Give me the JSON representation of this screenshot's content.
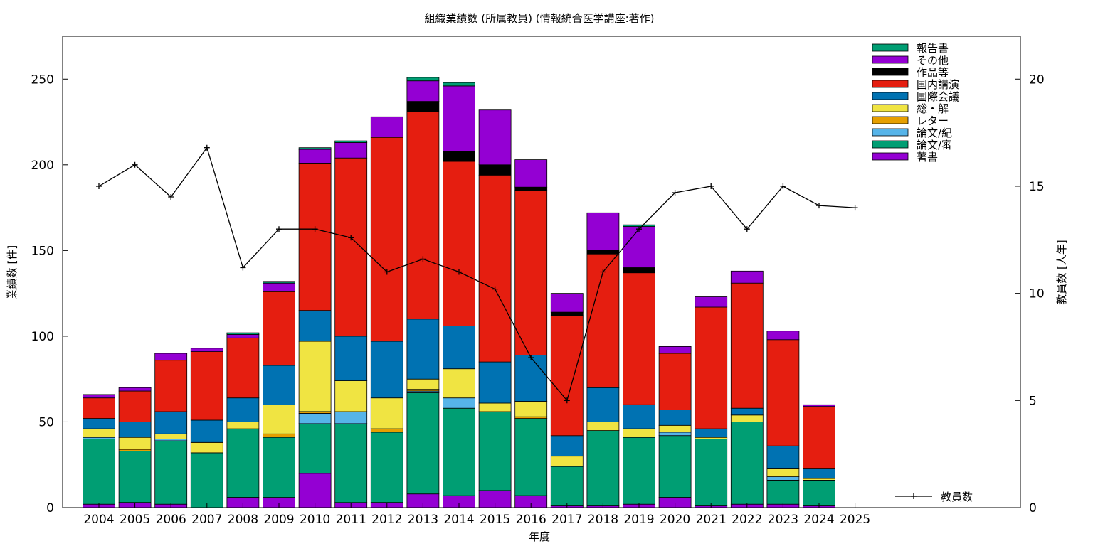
{
  "chart_data": {
    "type": "bar",
    "title": "組織業績数 (所属教員) (情報統合医学講座:著作)",
    "xlabel": "年度",
    "ylabel": "業績数 [件]",
    "y2label": "教員数 [人年]",
    "ylim": [
      0,
      275
    ],
    "y2lim": [
      0,
      22
    ],
    "yticks": [
      0,
      50,
      100,
      150,
      200,
      250
    ],
    "y2ticks": [
      0,
      5,
      10,
      15,
      20
    ],
    "grid": false,
    "legend_position": "top-right",
    "categories": [
      "2004",
      "2005",
      "2006",
      "2007",
      "2008",
      "2009",
      "2010",
      "2011",
      "2012",
      "2013",
      "2014",
      "2015",
      "2016",
      "2017",
      "2018",
      "2019",
      "2020",
      "2021",
      "2022",
      "2023",
      "2024",
      "2025"
    ],
    "series": [
      {
        "name": "著書",
        "color": "#9400d3",
        "values": [
          2,
          3,
          2,
          0,
          6,
          6,
          20,
          3,
          3,
          8,
          7,
          10,
          7,
          1,
          1,
          2,
          6,
          1,
          2,
          2,
          1,
          0
        ]
      },
      {
        "name": "論文/審",
        "color": "#009e73",
        "values": [
          38,
          30,
          37,
          32,
          40,
          35,
          29,
          46,
          41,
          59,
          51,
          46,
          45,
          23,
          44,
          39,
          36,
          39,
          48,
          14,
          15,
          0
        ]
      },
      {
        "name": "論文/紀",
        "color": "#56b4e9",
        "values": [
          1,
          0,
          1,
          0,
          0,
          0,
          6,
          7,
          0,
          1,
          6,
          0,
          0,
          0,
          0,
          0,
          2,
          0,
          0,
          2,
          0,
          0
        ]
      },
      {
        "name": "レター",
        "color": "#e69f00",
        "values": [
          0,
          1,
          0,
          0,
          0,
          2,
          1,
          0,
          2,
          1,
          0,
          0,
          1,
          0,
          0,
          0,
          0,
          0,
          0,
          0,
          0,
          0
        ]
      },
      {
        "name": "総・解",
        "color": "#f0e442",
        "values": [
          5,
          7,
          3,
          6,
          4,
          17,
          41,
          18,
          18,
          6,
          17,
          5,
          9,
          6,
          5,
          5,
          4,
          1,
          4,
          5,
          1,
          0
        ]
      },
      {
        "name": "国際会議",
        "color": "#0072b2",
        "values": [
          6,
          9,
          13,
          13,
          14,
          23,
          18,
          26,
          33,
          35,
          25,
          24,
          27,
          12,
          20,
          14,
          9,
          5,
          4,
          13,
          6,
          0
        ]
      },
      {
        "name": "国内講演",
        "color": "#e51e10",
        "values": [
          12,
          18,
          30,
          40,
          35,
          43,
          86,
          104,
          119,
          121,
          96,
          109,
          96,
          70,
          78,
          77,
          33,
          71,
          73,
          62,
          36,
          0
        ]
      },
      {
        "name": "作品等",
        "color": "#000000",
        "values": [
          0,
          0,
          0,
          0,
          0,
          0,
          0,
          0,
          0,
          6,
          6,
          6,
          2,
          2,
          2,
          3,
          0,
          0,
          0,
          0,
          0,
          0
        ]
      },
      {
        "name": "その他",
        "color": "#9400d3",
        "values": [
          2,
          2,
          4,
          2,
          2,
          5,
          8,
          9,
          12,
          12,
          38,
          32,
          16,
          11,
          22,
          24,
          4,
          6,
          7,
          5,
          1,
          0
        ]
      },
      {
        "name": "報告書",
        "color": "#009e73",
        "values": [
          0,
          0,
          0,
          0,
          1,
          1,
          1,
          1,
          0,
          2,
          2,
          0,
          0,
          0,
          0,
          1,
          0,
          0,
          0,
          0,
          0,
          0
        ]
      }
    ],
    "line_series": {
      "name": "教員数",
      "color": "#000000",
      "values": [
        15,
        16,
        14.5,
        16.8,
        11.2,
        13,
        13,
        12.6,
        11,
        11.6,
        11,
        10.2,
        7,
        5,
        11,
        13,
        14.7,
        15,
        13,
        15,
        14.1,
        14
      ]
    }
  }
}
